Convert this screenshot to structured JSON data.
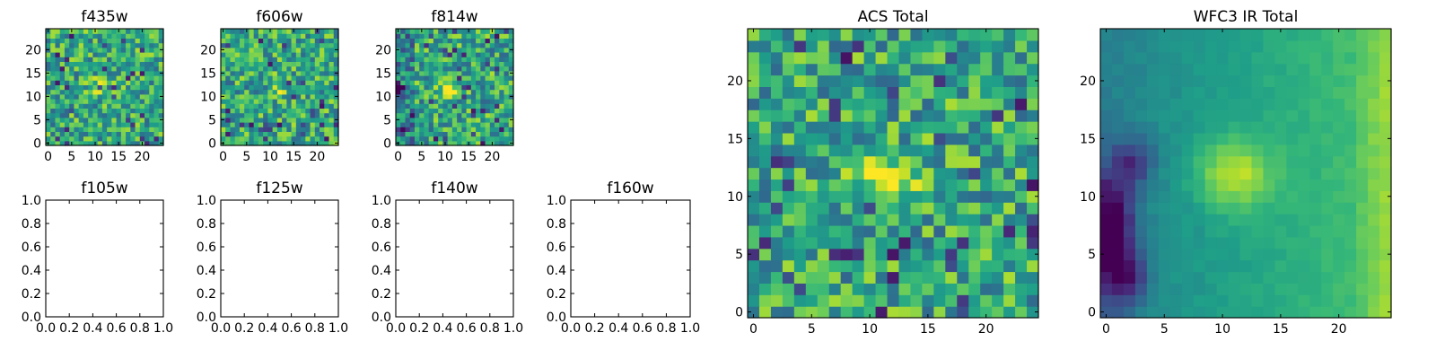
{
  "colormap": "viridis",
  "chart_data": [
    {
      "type": "heatmap",
      "title": "f435w",
      "shape": [
        25,
        25
      ],
      "xlim": [
        -0.5,
        24.5
      ],
      "ylim": [
        -0.5,
        24.5
      ],
      "xticks": [
        0,
        5,
        10,
        15,
        20
      ],
      "yticks": [
        0,
        5,
        10,
        15,
        20
      ],
      "note": "noisy image, mostly green-yellow, faint bright blob near (11,12)"
    },
    {
      "type": "heatmap",
      "title": "f606w",
      "shape": [
        25,
        25
      ],
      "xlim": [
        -0.5,
        24.5
      ],
      "ylim": [
        -0.5,
        24.5
      ],
      "xticks": [
        0,
        5,
        10,
        15,
        20
      ],
      "yticks": [
        0,
        5,
        10,
        15,
        20
      ],
      "note": "noisy image, faint bright blob near (11,12)"
    },
    {
      "type": "heatmap",
      "title": "f814w",
      "shape": [
        25,
        25
      ],
      "xlim": [
        -0.5,
        24.5
      ],
      "ylim": [
        -0.5,
        24.5
      ],
      "xticks": [
        0,
        5,
        10,
        15,
        20
      ],
      "yticks": [
        0,
        5,
        10,
        15,
        20
      ],
      "note": "noisy image, bright source near (11,12), darker left edge"
    },
    {
      "type": "empty",
      "title": "f105w",
      "xlim": [
        0,
        1
      ],
      "ylim": [
        0,
        1
      ],
      "xticks": [
        "0.0",
        "0.2",
        "0.4",
        "0.6",
        "0.8",
        "1.0"
      ],
      "yticks": [
        "0.0",
        "0.2",
        "0.4",
        "0.6",
        "0.8",
        "1.0"
      ]
    },
    {
      "type": "empty",
      "title": "f125w",
      "xlim": [
        0,
        1
      ],
      "ylim": [
        0,
        1
      ],
      "xticks": [
        "0.0",
        "0.2",
        "0.4",
        "0.6",
        "0.8",
        "1.0"
      ],
      "yticks": [
        "0.0",
        "0.2",
        "0.4",
        "0.6",
        "0.8",
        "1.0"
      ]
    },
    {
      "type": "empty",
      "title": "f140w",
      "xlim": [
        0,
        1
      ],
      "ylim": [
        0,
        1
      ],
      "xticks": [
        "0.0",
        "0.2",
        "0.4",
        "0.6",
        "0.8",
        "1.0"
      ],
      "yticks": [
        "0.0",
        "0.2",
        "0.4",
        "0.6",
        "0.8",
        "1.0"
      ]
    },
    {
      "type": "empty",
      "title": "f160w",
      "xlim": [
        0,
        1
      ],
      "ylim": [
        0,
        1
      ],
      "xticks": [
        "0.0",
        "0.2",
        "0.4",
        "0.6",
        "0.8",
        "1.0"
      ],
      "yticks": [
        "0.0",
        "0.2",
        "0.4",
        "0.6",
        "0.8",
        "1.0"
      ]
    },
    {
      "type": "heatmap",
      "title": "ACS Total",
      "shape": [
        25,
        25
      ],
      "xlim": [
        -0.5,
        24.5
      ],
      "ylim": [
        -0.5,
        24.5
      ],
      "xticks": [
        0,
        5,
        10,
        15,
        20
      ],
      "yticks": [
        0,
        5,
        10,
        15,
        20
      ],
      "note": "noisy image, bright yellow source centred near (11,12)"
    },
    {
      "type": "heatmap",
      "title": "WFC3 IR Total",
      "shape": [
        25,
        25
      ],
      "xlim": [
        -0.5,
        24.5
      ],
      "ylim": [
        -0.5,
        24.5
      ],
      "xticks": [
        0,
        5,
        10,
        15,
        20
      ],
      "yticks": [
        0,
        5,
        10,
        15,
        20
      ],
      "note": "smooth image, bright source near (11,12), bright right edge, dark left edge near x=0-3, y=2-13"
    }
  ]
}
